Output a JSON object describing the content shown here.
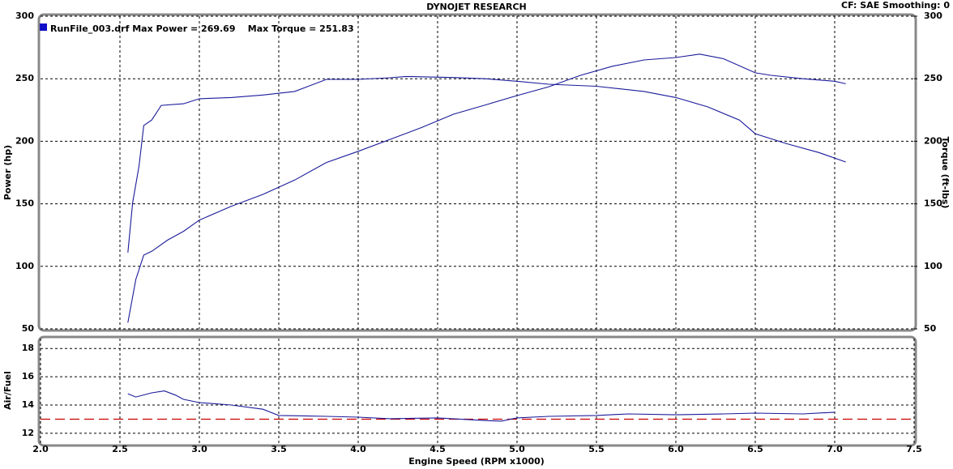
{
  "chart_data": [
    {
      "type": "line",
      "title": "DYNOJET RESEARCH",
      "subtitle": "CF: SAE  Smoothing: 0",
      "legend_label": "RunFile_003.drf Max Power = 269.69    Max Torque = 251.83",
      "legend_color": "#1010c8",
      "y_label": "Power (hp)",
      "y2_label": "Torque (ft-lbs)",
      "xlim": [
        2.0,
        7.5
      ],
      "xticks": [
        2.5,
        3.0,
        3.5,
        4.0,
        4.5,
        5.0,
        5.5,
        6.0,
        6.5,
        7.0
      ],
      "ylim": [
        50,
        300
      ],
      "yticks": [
        50,
        100,
        150,
        200,
        250,
        300
      ],
      "y2lim": [
        50,
        300
      ],
      "y2ticks": [
        50,
        100,
        150,
        200,
        250,
        300
      ],
      "grid": true,
      "series": [
        {
          "color": "#1a1a9a",
          "x": [
            2.55,
            2.6,
            2.65,
            2.7,
            2.8,
            2.9,
            3.0,
            3.2,
            3.4,
            3.6,
            3.8,
            4.0,
            4.2,
            4.4,
            4.6,
            4.8,
            5.0,
            5.2,
            5.4,
            5.6,
            5.8,
            6.0,
            6.15,
            6.3,
            6.5,
            6.6,
            6.8,
            7.0,
            7.07
          ],
          "values": [
            55,
            89.5,
            109,
            112,
            121,
            128,
            137,
            148,
            157.5,
            169,
            183,
            192,
            201.5,
            211,
            221.6,
            229,
            236.5,
            243.6,
            252.7,
            260,
            265,
            267,
            269.69,
            266,
            254.7,
            252.7,
            250,
            248,
            246
          ]
        },
        {
          "color": "#1a1a9a",
          "axis": "y2",
          "x": [
            2.55,
            2.58,
            2.62,
            2.65,
            2.7,
            2.76,
            2.9,
            3.0,
            3.2,
            3.4,
            3.6,
            3.8,
            4.0,
            4.2,
            4.3,
            4.6,
            4.8,
            5.0,
            5.2,
            5.5,
            5.8,
            6.0,
            6.2,
            6.4,
            6.5,
            6.7,
            6.9,
            7.07
          ],
          "values": [
            111,
            151,
            180,
            212.6,
            217,
            228.7,
            230,
            234,
            235,
            237,
            239.8,
            249.5,
            249.5,
            250.8,
            251.83,
            251,
            250,
            248,
            245.6,
            244,
            239.8,
            235,
            227.5,
            217,
            206,
            198,
            191,
            183.4
          ]
        }
      ]
    },
    {
      "type": "line",
      "y_label": "Air/Fuel",
      "x_label": "Engine Speed (RPM x1000)",
      "xlim": [
        2.0,
        7.5
      ],
      "xticks": [
        {
          "value": 2.0,
          "label": "2.0"
        },
        {
          "value": 2.5,
          "label": "2.5"
        },
        {
          "value": 3.0,
          "label": "3.0"
        },
        {
          "value": 3.5,
          "label": "3.5"
        },
        {
          "value": 4.0,
          "label": "4.0"
        },
        {
          "value": 4.5,
          "label": "4.5"
        },
        {
          "value": 5.0,
          "label": "5.0"
        },
        {
          "value": 5.5,
          "label": "5.5"
        },
        {
          "value": 6.0,
          "label": "6.0"
        },
        {
          "value": 6.5,
          "label": "6.5"
        },
        {
          "value": 7.0,
          "label": "7.0"
        },
        {
          "value": 7.5,
          "label": "7.5"
        }
      ],
      "ylim": [
        11.25,
        18.7
      ],
      "yticks": [
        12,
        14,
        16,
        18
      ],
      "grid": true,
      "reference_line": 13,
      "reference_color": "#cc0000",
      "series": [
        {
          "color": "#1a1a9a",
          "x": [
            2.55,
            2.6,
            2.7,
            2.78,
            2.85,
            2.9,
            3.0,
            3.2,
            3.4,
            3.5,
            3.8,
            4.0,
            4.2,
            4.5,
            4.8,
            4.9,
            5.0,
            5.2,
            5.5,
            5.7,
            6.0,
            6.3,
            6.5,
            6.8,
            7.0
          ],
          "values": [
            14.8,
            14.57,
            14.86,
            15.0,
            14.7,
            14.4,
            14.17,
            14.0,
            13.7,
            13.26,
            13.2,
            13.14,
            13.03,
            13.09,
            12.9,
            12.86,
            13.09,
            13.2,
            13.26,
            13.37,
            13.31,
            13.37,
            13.43,
            13.37,
            13.49
          ]
        }
      ]
    }
  ]
}
